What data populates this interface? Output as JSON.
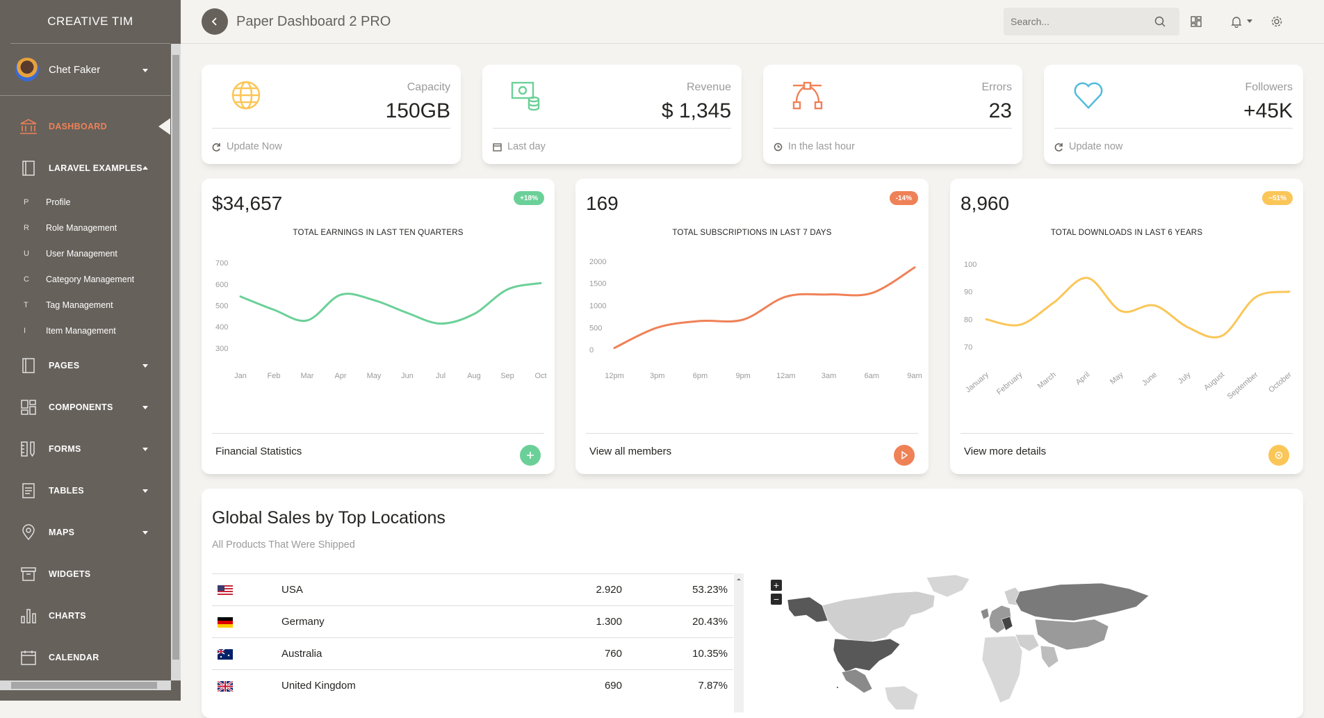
{
  "sidebar": {
    "logo": "CREATIVE TIM",
    "user_name": "Chet Faker",
    "nav": [
      {
        "label": "DASHBOARD",
        "active": true
      },
      {
        "label": "LARAVEL EXAMPLES"
      }
    ],
    "sub_items": [
      {
        "mini": "P",
        "label": "Profile"
      },
      {
        "mini": "R",
        "label": "Role Management"
      },
      {
        "mini": "U",
        "label": "User Management"
      },
      {
        "mini": "C",
        "label": "Category Management"
      },
      {
        "mini": "T",
        "label": "Tag Management"
      },
      {
        "mini": "I",
        "label": "Item Management"
      }
    ],
    "nav2": [
      {
        "label": "PAGES"
      },
      {
        "label": "COMPONENTS"
      },
      {
        "label": "FORMS"
      },
      {
        "label": "TABLES"
      },
      {
        "label": "MAPS"
      },
      {
        "label": "WIDGETS"
      },
      {
        "label": "CHARTS"
      },
      {
        "label": "CALENDAR"
      }
    ]
  },
  "navbar": {
    "title": "Paper Dashboard 2 PRO",
    "search_placeholder": "Search..."
  },
  "stats": [
    {
      "label": "Capacity",
      "value": "150GB",
      "footer": "Update Now",
      "color": "#fbc658"
    },
    {
      "label": "Revenue",
      "value": "$ 1,345",
      "footer": "Last day",
      "color": "#6bd098"
    },
    {
      "label": "Errors",
      "value": "23",
      "footer": "In the last hour",
      "color": "#ef8157"
    },
    {
      "label": "Followers",
      "value": "+45K",
      "footer": "Update now",
      "color": "#51bcda"
    }
  ],
  "charts": {
    "earnings": {
      "big": "$34,657",
      "badge": "+18%",
      "title": "TOTAL EARNINGS IN LAST TEN QUARTERS",
      "footer": "Financial Statistics"
    },
    "subs": {
      "big": "169",
      "badge": "-14%",
      "title": "TOTAL SUBSCRIPTIONS IN LAST 7 DAYS",
      "footer": "View all members"
    },
    "downloads": {
      "big": "8,960",
      "badge": "~51%",
      "title": "TOTAL DOWNLOADS IN LAST 6 YEARS",
      "footer": "View more details"
    }
  },
  "chart_data": [
    {
      "type": "line",
      "title": "TOTAL EARNINGS IN LAST TEN QUARTERS",
      "categories": [
        "Jan",
        "Feb",
        "Mar",
        "Apr",
        "May",
        "Jun",
        "Jul",
        "Aug",
        "Sep",
        "Oct"
      ],
      "values": [
        542,
        480,
        430,
        550,
        525,
        465,
        415,
        460,
        575,
        605
      ],
      "yticks": [
        300,
        400,
        500,
        600,
        700
      ],
      "ylim": [
        280,
        720
      ],
      "color": "#6bd098"
    },
    {
      "type": "line",
      "title": "TOTAL SUBSCRIPTIONS IN LAST 7 DAYS",
      "categories": [
        "12pm",
        "3pm",
        "6pm",
        "9pm",
        "12am",
        "3am",
        "6am",
        "9am"
      ],
      "values": [
        40,
        500,
        650,
        680,
        1200,
        1250,
        1280,
        1860
      ],
      "yticks": [
        0,
        500,
        1000,
        1500,
        2000
      ],
      "ylim": [
        -60,
        2060
      ],
      "color": "#ef8157"
    },
    {
      "type": "line",
      "title": "TOTAL DOWNLOADS IN LAST 6 YEARS",
      "categories": [
        "January",
        "February",
        "March",
        "April",
        "May",
        "June",
        "July",
        "August",
        "September",
        "October"
      ],
      "values": [
        80,
        78,
        86,
        95,
        83,
        85,
        77,
        74,
        88,
        90
      ],
      "yticks": [
        70,
        80,
        90,
        100
      ],
      "ylim": [
        68,
        102
      ],
      "color": "#fbc658"
    }
  ],
  "sales": {
    "title": "Global Sales by Top Locations",
    "subtitle": "All Products That Were Shipped",
    "rows": [
      {
        "country": "USA",
        "amount": "2.920",
        "pct": "53.23%",
        "flag": "us"
      },
      {
        "country": "Germany",
        "amount": "1.300",
        "pct": "20.43%",
        "flag": "de"
      },
      {
        "country": "Australia",
        "amount": "760",
        "pct": "10.35%",
        "flag": "au"
      },
      {
        "country": "United Kingdom",
        "amount": "690",
        "pct": "7.87%",
        "flag": "gb"
      }
    ],
    "zoom_in": "+",
    "zoom_out": "−"
  }
}
